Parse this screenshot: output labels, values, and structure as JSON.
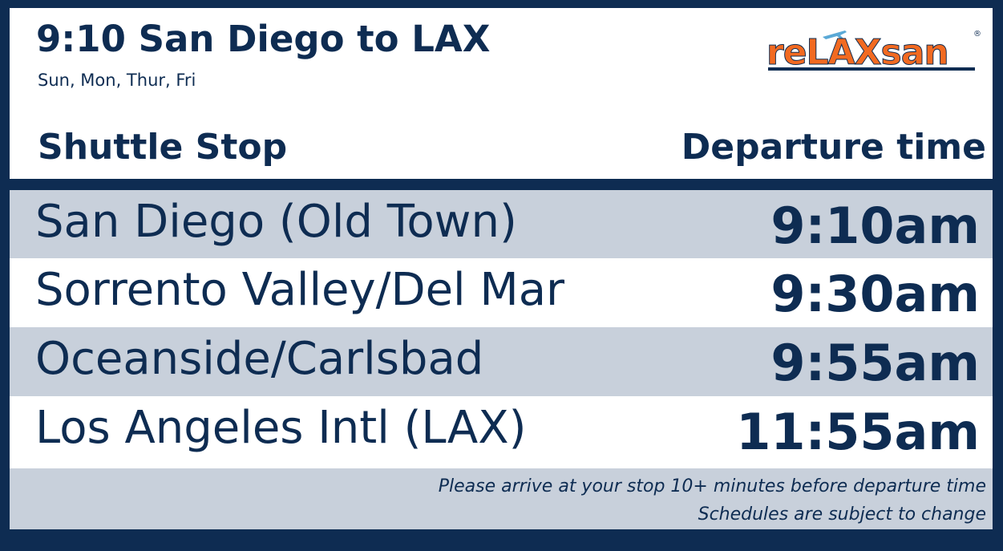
{
  "header": {
    "title": "9:10 San Diego to LAX",
    "subtitle": "Sun, Mon, Thur, Fri",
    "logo": "reLAXsan",
    "logo_mark": "®"
  },
  "table": {
    "columns": [
      "Shuttle Stop",
      "Departure time"
    ],
    "rows": [
      [
        "San Diego (Old Town)",
        "9:10am"
      ],
      [
        "Sorrento Valley/Del Mar",
        "9:30am"
      ],
      [
        "Oceanside/Carlsbad",
        "9:55am"
      ],
      [
        "Los Angeles Intl (LAX)",
        "11:55am"
      ]
    ]
  },
  "footer": {
    "notes": [
      "Please arrive at your stop 10+ minutes before departure time",
      "Schedules are subject to change"
    ]
  }
}
